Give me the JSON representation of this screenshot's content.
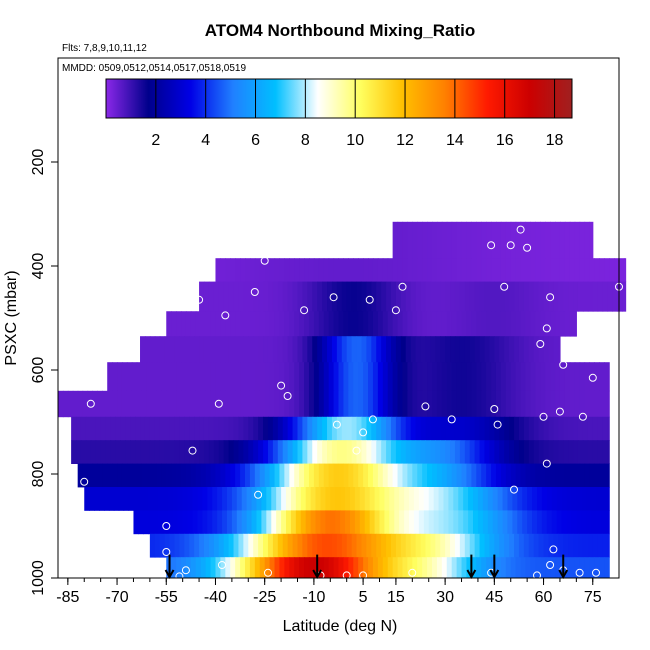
{
  "chart_data": {
    "type": "heatmap",
    "title": "ATOM4 Northbound Mixing_Ratio",
    "subtitle_flights": "Flts: 7,8,9,10,11,12",
    "subtitle_dates": "MMDD: 0509,0512,0514,0517,0518,0519",
    "xlabel": "Latitude (deg N)",
    "ylabel": "PSXC (mbar)",
    "xlim": [
      -88,
      83
    ],
    "ylim": [
      1000,
      0
    ],
    "x_ticks": [
      -85,
      -70,
      -55,
      -40,
      -25,
      -10,
      5,
      15,
      30,
      45,
      60,
      75
    ],
    "x_tick_labels": [
      "-85",
      "-70",
      "-55",
      "-40",
      "-25",
      "-10",
      "5",
      "15",
      "30",
      "45",
      "60",
      "75"
    ],
    "y_ticks": [
      200,
      400,
      600,
      800,
      1000
    ],
    "y_tick_labels": [
      "200",
      "400",
      "600",
      "800",
      "1000"
    ],
    "colorbar": {
      "range": [
        0,
        18.7
      ],
      "ticks": [
        2,
        4,
        6,
        8,
        10,
        12,
        14,
        16,
        18
      ],
      "tick_labels": [
        "2",
        "4",
        "6",
        "8",
        "10",
        "12",
        "14",
        "16",
        "18"
      ],
      "stops": [
        "#8b28e8",
        "#00008b",
        "#0000e6",
        "#2080ff",
        "#00bfff",
        "#ffffff",
        "#ffff60",
        "#ffc000",
        "#ff8000",
        "#ff1a00",
        "#cc0000",
        "#a02020"
      ]
    },
    "layers": [
      {
        "p": [
          315,
          385
        ],
        "lat": [
          14,
          75
        ],
        "profile": "upper"
      },
      {
        "p": [
          385,
          430
        ],
        "lat": [
          -40,
          85
        ],
        "profile": "upper"
      },
      {
        "p": [
          430,
          487
        ],
        "lat": [
          -45,
          85
        ],
        "profile": "mid_upper"
      },
      {
        "p": [
          487,
          535
        ],
        "lat": [
          -55,
          70
        ],
        "profile": "mid_upper"
      },
      {
        "p": [
          535,
          585
        ],
        "lat": [
          -63,
          65
        ],
        "profile": "mid"
      },
      {
        "p": [
          585,
          640
        ],
        "lat": [
          -73,
          80
        ],
        "profile": "mid"
      },
      {
        "p": [
          640,
          690
        ],
        "lat": [
          -88,
          80
        ],
        "profile": "mid"
      },
      {
        "p": [
          690,
          735
        ],
        "lat": [
          -84,
          80
        ],
        "profile": "mid_low"
      },
      {
        "p": [
          735,
          780
        ],
        "lat": [
          -84,
          80
        ],
        "profile": "low1"
      },
      {
        "p": [
          780,
          825
        ],
        "lat": [
          -82,
          80
        ],
        "profile": "low2"
      },
      {
        "p": [
          825,
          870
        ],
        "lat": [
          -80,
          80
        ],
        "profile": "low3"
      },
      {
        "p": [
          870,
          915
        ],
        "lat": [
          -65,
          80
        ],
        "profile": "low4"
      },
      {
        "p": [
          915,
          960
        ],
        "lat": [
          -60,
          80
        ],
        "profile": "low5"
      },
      {
        "p": [
          960,
          1005
        ],
        "lat": [
          -55,
          80
        ],
        "profile": "surface"
      }
    ],
    "samples": [
      {
        "lat": -87,
        "p": 615
      },
      {
        "lat": -78,
        "p": 665
      },
      {
        "lat": -80,
        "p": 815
      },
      {
        "lat": -55,
        "p": 900
      },
      {
        "lat": -55,
        "p": 950
      },
      {
        "lat": -49,
        "p": 985
      },
      {
        "lat": -45,
        "p": 465
      },
      {
        "lat": -37,
        "p": 495
      },
      {
        "lat": -39,
        "p": 665
      },
      {
        "lat": -47,
        "p": 755
      },
      {
        "lat": -38,
        "p": 975
      },
      {
        "lat": -28,
        "p": 450
      },
      {
        "lat": -25,
        "p": 390
      },
      {
        "lat": -27,
        "p": 840
      },
      {
        "lat": -24,
        "p": 990
      },
      {
        "lat": -20,
        "p": 630
      },
      {
        "lat": -18,
        "p": 650
      },
      {
        "lat": -13,
        "p": 485
      },
      {
        "lat": -4,
        "p": 460
      },
      {
        "lat": -3,
        "p": 705
      },
      {
        "lat": 3,
        "p": 755
      },
      {
        "lat": 5,
        "p": 720
      },
      {
        "lat": 7,
        "p": 465
      },
      {
        "lat": 8,
        "p": 695
      },
      {
        "lat": 4,
        "p": 315
      },
      {
        "lat": 15,
        "p": 485
      },
      {
        "lat": 17,
        "p": 440
      },
      {
        "lat": 24,
        "p": 670
      },
      {
        "lat": 32,
        "p": 695
      },
      {
        "lat": 44,
        "p": 360
      },
      {
        "lat": 48,
        "p": 440
      },
      {
        "lat": 45,
        "p": 675
      },
      {
        "lat": 46,
        "p": 705
      },
      {
        "lat": 50,
        "p": 360
      },
      {
        "lat": 53,
        "p": 330
      },
      {
        "lat": 51,
        "p": 830
      },
      {
        "lat": 55,
        "p": 365
      },
      {
        "lat": 59,
        "p": 550
      },
      {
        "lat": 61,
        "p": 520
      },
      {
        "lat": 62,
        "p": 460
      },
      {
        "lat": 60,
        "p": 690
      },
      {
        "lat": 61,
        "p": 780
      },
      {
        "lat": 65,
        "p": 680
      },
      {
        "lat": 66,
        "p": 590
      },
      {
        "lat": 72,
        "p": 690
      },
      {
        "lat": 75,
        "p": 615
      },
      {
        "lat": 83,
        "p": 440
      },
      {
        "lat": 63,
        "p": 945
      },
      {
        "lat": 62,
        "p": 975
      },
      {
        "lat": 66,
        "p": 985
      },
      {
        "lat": 71,
        "p": 990
      },
      {
        "lat": 76,
        "p": 990
      },
      {
        "lat": 82,
        "p": 997
      },
      {
        "lat": 58,
        "p": 995
      },
      {
        "lat": 44,
        "p": 990
      },
      {
        "lat": 20,
        "p": 990
      },
      {
        "lat": -8,
        "p": 995
      },
      {
        "lat": 0,
        "p": 995
      },
      {
        "lat": 5,
        "p": 995
      },
      {
        "lat": -51,
        "p": 997
      }
    ],
    "profile_markers_lat": [
      -54,
      -9,
      38,
      45,
      66
    ],
    "profile_arrow_top_p": 955
  }
}
